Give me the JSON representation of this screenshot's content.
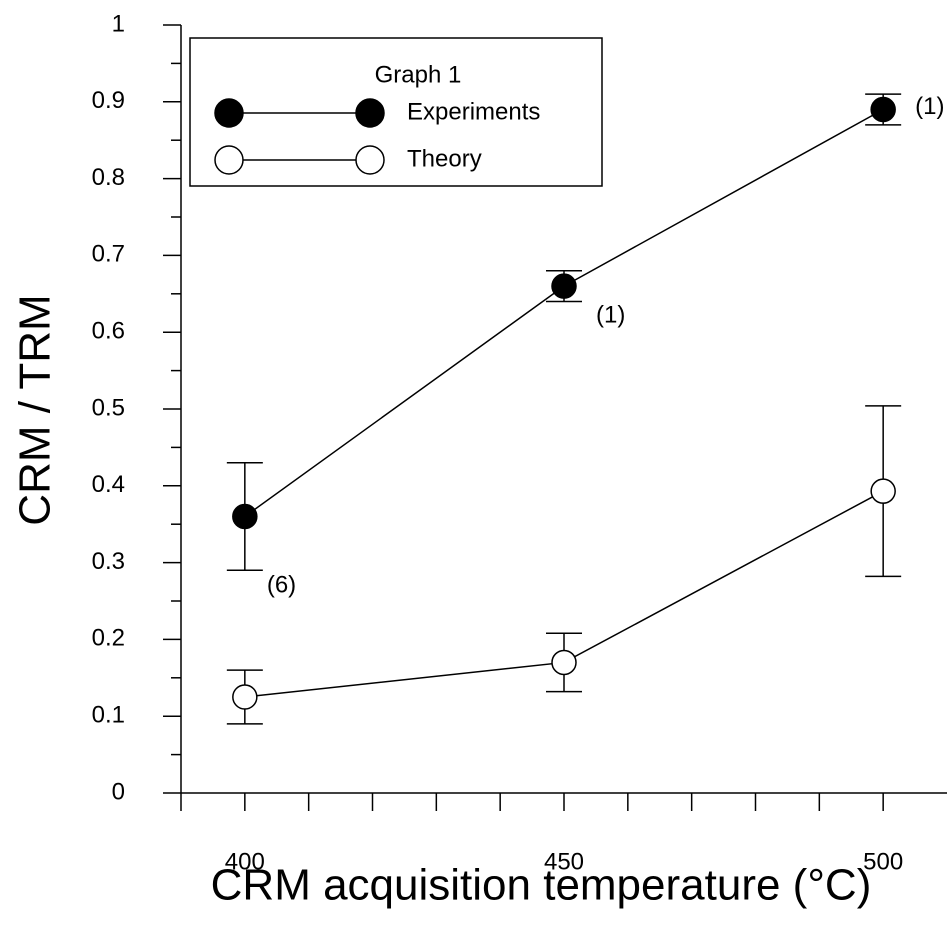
{
  "chart_data": {
    "type": "line",
    "x_label": "CRM acquisition temperature (°C)",
    "y_label": "CRM / TRM",
    "legend_title": "Graph 1",
    "x": [
      400,
      450,
      500
    ],
    "series": [
      {
        "name": "Experiments",
        "color": "#000000",
        "marker": "filled",
        "values": [
          0.36,
          0.66,
          0.89
        ],
        "errors": [
          0.07,
          0.02,
          0.02
        ]
      },
      {
        "name": "Theory",
        "color": "#000000",
        "marker": "open",
        "values": [
          0.125,
          0.17,
          0.393
        ],
        "errors": [
          0.035,
          0.038,
          0.111
        ]
      }
    ],
    "annotations": [
      "(6)",
      "(1)",
      "(1)"
    ],
    "xlim": [
      390,
      510
    ],
    "xticks": [
      400,
      450,
      500
    ],
    "xminorticks": [
      410,
      420,
      430,
      440,
      460,
      470,
      480,
      490
    ],
    "ylim": [
      0,
      1
    ],
    "yticks": [
      0,
      0.1,
      0.2,
      0.3,
      0.4,
      0.5,
      0.6,
      0.7,
      0.8,
      0.9,
      1
    ],
    "yminorticks": [
      0.05,
      0.15,
      0.25,
      0.35,
      0.45,
      0.55,
      0.65,
      0.75,
      0.85,
      0.95
    ],
    "legend_position": "upper left"
  }
}
